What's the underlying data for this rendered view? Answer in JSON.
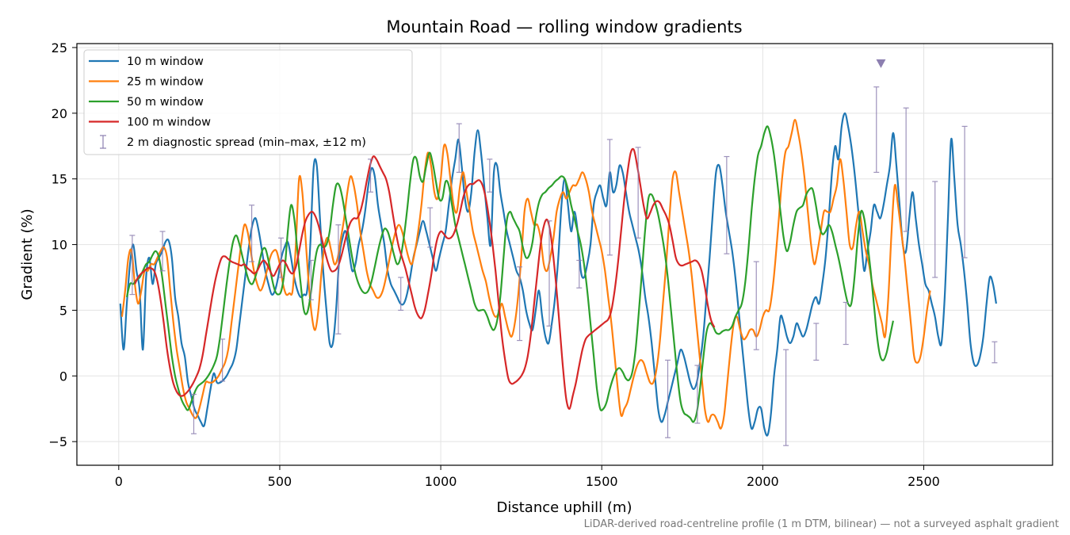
{
  "chart_data": {
    "type": "line",
    "title": "Mountain Road — rolling window gradients",
    "xlabel": "Distance uphill (m)",
    "ylabel": "Gradient (%)",
    "footnote": "LiDAR-derived road-centreline profile (1 m DTM, bilinear) — not a surveyed asphalt gradient",
    "xlim": [
      -130,
      2900
    ],
    "ylim": [
      -6.8,
      25.3
    ],
    "xticks": [
      0,
      500,
      1000,
      1500,
      2000,
      2500
    ],
    "yticks": [
      -5,
      0,
      5,
      10,
      15,
      20,
      25
    ],
    "grid": true,
    "legend_position": "top-left",
    "peak_marker": {
      "x": 2367,
      "y": 23.8,
      "color": "#8c7fb0"
    },
    "series": [
      {
        "name": "10 m window",
        "color": "#1f77b4",
        "x0": 5,
        "step": 10,
        "values": [
          5.5,
          2.0,
          5.5,
          8.5,
          10.0,
          8.0,
          6.5,
          2.0,
          7.5,
          9.0,
          7.0,
          8.5,
          9.0,
          9.5,
          10.2,
          10.3,
          9.0,
          6.0,
          4.5,
          2.5,
          1.5,
          -0.5,
          -1.5,
          -2.5,
          -3.0,
          -3.5,
          -3.8,
          -2.5,
          -1.0,
          0.2,
          -0.5,
          -0.5,
          -0.3,
          0.0,
          0.5,
          1.0,
          2.0,
          4.0,
          6.0,
          8.0,
          10.0,
          11.5,
          12.0,
          11.0,
          9.5,
          8.0,
          7.0,
          6.2,
          6.5,
          7.5,
          9.0,
          9.8,
          10.2,
          9.0,
          7.5,
          6.5,
          6.0,
          6.2,
          6.5,
          10.0,
          15.8,
          16.0,
          12.0,
          8.0,
          5.0,
          2.5,
          2.5,
          5.0,
          9.0,
          10.5,
          11.0,
          9.5,
          8.0,
          8.5,
          10.0,
          11.0,
          12.5,
          14.5,
          15.8,
          15.2,
          13.0,
          11.5,
          10.0,
          8.0,
          7.0,
          6.5,
          6.0,
          5.5,
          5.5,
          6.2,
          7.5,
          9.0,
          10.0,
          11.0,
          11.8,
          11.0,
          10.0,
          9.0,
          8.0,
          9.0,
          10.0,
          11.0,
          13.0,
          15.0,
          16.5,
          18.0,
          16.0,
          13.5,
          12.5,
          14.0,
          17.0,
          18.7,
          17.0,
          14.5,
          12.0,
          10.0,
          15.5,
          16.0,
          14.0,
          12.5,
          11.0,
          10.0,
          9.0,
          8.0,
          7.5,
          6.5,
          5.0,
          4.0,
          3.5,
          5.0,
          6.5,
          4.5,
          3.0,
          2.5,
          4.0,
          6.0,
          9.0,
          13.0,
          15.0,
          13.0,
          11.0,
          12.5,
          11.0,
          8.0,
          7.5,
          8.5,
          10.0,
          13.0,
          14.0,
          14.5,
          13.5,
          13.0,
          15.5,
          14.0,
          14.5,
          16.0,
          15.5,
          14.0,
          12.5,
          11.5,
          10.5,
          9.5,
          8.0,
          6.0,
          4.5,
          2.5,
          0.0,
          -2.5,
          -3.5,
          -3.0,
          -2.0,
          -1.0,
          0.0,
          1.0,
          2.0,
          1.5,
          0.5,
          -0.5,
          -1.0,
          -0.5,
          1.0,
          3.0,
          6.0,
          9.0,
          12.5,
          15.5,
          16.0,
          14.5,
          12.5,
          11.0,
          9.5,
          7.5,
          5.0,
          2.5,
          0.0,
          -2.5,
          -4.0,
          -3.5,
          -2.5,
          -2.5,
          -4.0,
          -4.5,
          -3.0,
          0.0,
          2.0,
          4.5,
          4.0,
          3.0,
          2.5,
          3.0,
          4.0,
          3.5,
          3.0,
          3.5,
          4.5,
          5.5,
          6.0,
          5.5,
          7.0,
          9.0,
          12.0,
          15.5,
          17.5,
          16.5,
          19.0,
          20.0,
          19.0,
          17.5,
          15.5,
          13.0,
          10.5,
          8.0,
          9.5,
          11.0,
          13.0,
          12.5,
          12.0,
          13.0,
          14.5,
          16.0,
          18.5,
          16.0,
          13.0,
          10.0,
          9.5,
          12.0,
          14.0,
          12.0,
          10.0,
          8.5,
          7.0,
          6.5,
          5.5,
          4.5,
          3.0,
          2.5,
          6.0,
          12.0,
          18.0,
          15.0,
          11.5,
          10.0,
          8.0,
          5.5,
          2.5,
          1.0,
          0.8,
          1.5,
          3.0,
          5.5,
          7.5,
          7.0,
          5.5
        ]
      },
      {
        "name": "25 m window",
        "color": "#ff7f0e",
        "x0": 10,
        "step": 10,
        "values": [
          4.5,
          6.5,
          9.0,
          9.5,
          7.0,
          5.5,
          6.5,
          8.0,
          8.0,
          8.5,
          8.5,
          9.0,
          9.5,
          9.8,
          9.0,
          6.5,
          4.0,
          2.0,
          0.5,
          -1.0,
          -2.0,
          -2.5,
          -3.0,
          -3.2,
          -2.5,
          -1.5,
          -0.5,
          -0.5,
          -0.5,
          -0.3,
          0.0,
          0.5,
          1.0,
          2.0,
          4.0,
          6.0,
          8.0,
          10.0,
          11.5,
          11.0,
          9.5,
          8.0,
          7.0,
          6.5,
          7.0,
          8.0,
          9.0,
          9.5,
          9.5,
          8.5,
          7.0,
          6.2,
          6.3,
          6.5,
          10.0,
          15.0,
          14.0,
          10.5,
          7.0,
          4.5,
          3.5,
          5.0,
          8.0,
          10.0,
          10.5,
          9.5,
          8.5,
          9.0,
          10.5,
          12.0,
          14.0,
          15.2,
          14.5,
          13.0,
          11.0,
          9.5,
          8.0,
          7.0,
          6.5,
          6.0,
          6.0,
          6.5,
          7.5,
          8.8,
          10.0,
          11.0,
          11.5,
          11.0,
          10.0,
          9.0,
          8.5,
          9.5,
          11.0,
          13.0,
          15.5,
          17.0,
          16.0,
          14.0,
          13.5,
          15.0,
          17.5,
          17.0,
          15.0,
          13.0,
          12.5,
          14.5,
          15.5,
          14.0,
          12.5,
          11.0,
          10.0,
          9.0,
          8.0,
          7.2,
          6.0,
          5.0,
          4.5,
          4.8,
          5.5,
          4.5,
          3.5,
          3.0,
          4.0,
          6.0,
          9.0,
          12.5,
          13.5,
          12.5,
          11.5,
          11.5,
          10.5,
          8.5,
          8.0,
          9.0,
          10.5,
          12.5,
          13.5,
          14.0,
          13.5,
          14.0,
          14.5,
          14.5,
          15.0,
          15.5,
          15.0,
          14.0,
          12.5,
          11.5,
          10.5,
          9.5,
          8.0,
          6.0,
          4.0,
          1.5,
          -1.0,
          -3.0,
          -2.5,
          -2.0,
          -1.0,
          0.0,
          0.8,
          1.2,
          1.0,
          0.2,
          -0.5,
          -0.5,
          0.5,
          2.5,
          5.5,
          8.5,
          12.0,
          15.0,
          15.5,
          14.0,
          12.5,
          11.0,
          9.5,
          7.5,
          5.0,
          2.5,
          0.0,
          -2.5,
          -3.5,
          -3.0,
          -3.0,
          -3.5,
          -4.0,
          -3.0,
          -0.5,
          2.0,
          4.0,
          4.5,
          3.5,
          2.8,
          3.0,
          3.5,
          3.5,
          3.0,
          3.5,
          4.5,
          5.0,
          5.0,
          6.5,
          9.0,
          12.0,
          15.0,
          17.0,
          17.5,
          18.5,
          19.5,
          18.5,
          17.0,
          15.0,
          12.5,
          10.0,
          8.5,
          9.5,
          11.0,
          12.5,
          12.5,
          12.5,
          13.5,
          14.5,
          16.5,
          15.0,
          12.5,
          10.0,
          9.8,
          11.5,
          12.5,
          11.0,
          9.5,
          8.5,
          7.0,
          6.0,
          5.0,
          4.0,
          3.0,
          6.0,
          11.0,
          14.5,
          13.0,
          11.0,
          9.0,
          6.5,
          4.0,
          1.5,
          1.0,
          1.5,
          3.0,
          5.0,
          6.5
        ]
      },
      {
        "name": "50 m window",
        "color": "#2ca02c",
        "x0": 25,
        "step": 10,
        "values": [
          6.0,
          7.0,
          7.0,
          7.3,
          7.5,
          8.0,
          8.5,
          8.7,
          9.2,
          9.5,
          9.0,
          7.5,
          5.5,
          3.5,
          1.5,
          0.0,
          -1.0,
          -1.8,
          -2.3,
          -2.6,
          -2.0,
          -1.3,
          -0.8,
          -0.6,
          -0.4,
          -0.1,
          0.3,
          0.8,
          1.5,
          3.0,
          5.0,
          7.0,
          8.8,
          10.2,
          10.7,
          10.0,
          9.0,
          8.0,
          7.2,
          7.0,
          7.6,
          8.5,
          9.5,
          9.7,
          8.8,
          7.5,
          6.5,
          6.2,
          6.5,
          8.0,
          11.0,
          13.0,
          12.0,
          9.5,
          7.0,
          5.0,
          4.8,
          6.0,
          8.0,
          9.5,
          10.0,
          9.8,
          10.0,
          11.0,
          13.0,
          14.5,
          14.5,
          13.5,
          12.0,
          10.5,
          9.0,
          7.8,
          7.0,
          6.5,
          6.3,
          6.5,
          7.2,
          8.3,
          9.5,
          10.5,
          11.2,
          11.0,
          10.2,
          9.2,
          8.5,
          9.0,
          10.5,
          12.5,
          14.8,
          16.5,
          16.5,
          15.2,
          14.8,
          16.0,
          17.0,
          16.2,
          14.8,
          13.5,
          13.5,
          14.8,
          14.5,
          13.0,
          11.5,
          10.5,
          9.5,
          8.5,
          7.5,
          6.5,
          5.5,
          5.0,
          5.0,
          5.0,
          4.5,
          3.8,
          3.5,
          4.2,
          6.0,
          9.0,
          11.8,
          12.5,
          12.0,
          11.5,
          11.0,
          9.8,
          9.0,
          9.2,
          10.2,
          12.0,
          13.2,
          13.8,
          14.0,
          14.3,
          14.5,
          14.8,
          15.0,
          15.2,
          15.0,
          14.2,
          13.0,
          12.0,
          11.0,
          10.0,
          8.5,
          6.5,
          4.0,
          1.5,
          -1.0,
          -2.5,
          -2.5,
          -2.0,
          -1.0,
          -0.2,
          0.4,
          0.6,
          0.3,
          -0.2,
          -0.3,
          0.3,
          2.0,
          4.8,
          8.0,
          11.2,
          13.5,
          13.8,
          13.2,
          12.3,
          11.0,
          9.5,
          7.5,
          5.0,
          2.5,
          0.0,
          -2.0,
          -2.8,
          -3.0,
          -3.2,
          -3.5,
          -2.8,
          -1.0,
          1.3,
          3.3,
          4.0,
          3.8,
          3.3,
          3.2,
          3.4,
          3.5,
          3.5,
          3.8,
          4.5,
          5.0,
          5.5,
          7.0,
          9.5,
          12.5,
          15.0,
          16.8,
          17.5,
          18.5,
          19.0,
          18.2,
          16.8,
          14.8,
          12.5,
          10.5,
          9.5,
          10.2,
          11.5,
          12.5,
          12.8,
          13.0,
          13.8,
          14.2,
          14.2,
          13.0,
          11.5,
          10.8,
          11.0,
          11.5,
          11.0,
          10.0,
          9.0,
          7.8,
          6.5,
          5.5,
          5.5,
          7.5,
          10.5,
          12.5,
          12.0,
          10.2,
          8.0,
          5.5,
          3.0,
          1.5,
          1.2,
          1.8,
          3.0,
          4.2
        ]
      },
      {
        "name": "100 m window",
        "color": "#d62728",
        "x0": 50,
        "step": 10,
        "values": [
          7.0,
          7.5,
          7.8,
          8.0,
          8.2,
          8.2,
          8.0,
          7.2,
          5.8,
          4.0,
          2.0,
          0.5,
          -0.6,
          -1.2,
          -1.5,
          -1.5,
          -1.3,
          -1.0,
          -0.6,
          -0.1,
          0.5,
          1.5,
          3.0,
          4.5,
          6.0,
          7.3,
          8.3,
          9.0,
          9.1,
          8.9,
          8.7,
          8.6,
          8.5,
          8.4,
          8.5,
          8.2,
          8.0,
          7.8,
          8.0,
          8.5,
          8.8,
          8.5,
          8.0,
          7.6,
          8.0,
          8.5,
          8.8,
          8.5,
          8.0,
          7.8,
          8.3,
          9.5,
          10.8,
          11.8,
          12.3,
          12.5,
          12.2,
          11.5,
          10.5,
          9.5,
          8.6,
          8.0,
          8.0,
          8.3,
          9.0,
          10.0,
          11.0,
          11.7,
          12.0,
          12.0,
          12.5,
          13.5,
          14.8,
          16.0,
          16.7,
          16.5,
          16.0,
          15.5,
          15.0,
          14.0,
          12.5,
          11.0,
          9.8,
          9.0,
          8.2,
          7.2,
          6.2,
          5.2,
          4.6,
          4.4,
          5.0,
          6.2,
          7.6,
          9.3,
          10.5,
          11.0,
          10.8,
          10.5,
          10.5,
          10.8,
          11.5,
          12.5,
          13.6,
          14.3,
          14.6,
          14.6,
          14.8,
          14.9,
          14.5,
          13.5,
          12.0,
          10.2,
          8.0,
          5.5,
          3.0,
          1.2,
          -0.2,
          -0.6,
          -0.5,
          -0.3,
          0.0,
          0.5,
          1.5,
          3.2,
          5.5,
          7.8,
          10.0,
          11.4,
          11.9,
          11.0,
          9.0,
          6.5,
          3.5,
          0.5,
          -1.8,
          -2.5,
          -1.5,
          -0.5,
          0.8,
          2.0,
          2.8,
          3.1,
          3.3,
          3.5,
          3.7,
          3.9,
          4.1,
          4.3,
          5.0,
          6.5,
          8.5,
          11.0,
          13.5,
          15.5,
          17.0,
          17.2,
          16.0,
          14.5,
          13.0,
          12.0,
          12.4,
          13.0,
          13.3,
          13.2,
          12.7,
          12.2,
          11.5,
          10.3,
          9.0,
          8.5,
          8.4,
          8.5,
          8.6,
          8.7,
          8.8,
          8.6,
          8.0,
          6.8,
          5.3,
          4.2,
          3.7
        ]
      }
    ],
    "error_bars": {
      "name": "2 m diagnostic spread (min–max, ±12 m)",
      "color": "#8c7fb0",
      "points": [
        {
          "x": 42,
          "low": 6.2,
          "high": 10.7
        },
        {
          "x": 136,
          "low": 8.0,
          "high": 11.0
        },
        {
          "x": 233,
          "low": -4.4,
          "high": -1.4
        },
        {
          "x": 322,
          "low": -0.4,
          "high": 2.8
        },
        {
          "x": 413,
          "low": 8.7,
          "high": 13.0
        },
        {
          "x": 504,
          "low": 7.5,
          "high": 10.5
        },
        {
          "x": 597,
          "low": 5.8,
          "high": 8.8
        },
        {
          "x": 682,
          "low": 3.2,
          "high": 11.5
        },
        {
          "x": 782,
          "low": 14.0,
          "high": 16.5
        },
        {
          "x": 876,
          "low": 5.0,
          "high": 7.5
        },
        {
          "x": 967,
          "low": 9.8,
          "high": 12.8
        },
        {
          "x": 1057,
          "low": 15.5,
          "high": 19.2
        },
        {
          "x": 1152,
          "low": 14.0,
          "high": 16.5
        },
        {
          "x": 1245,
          "low": 2.7,
          "high": 8.3
        },
        {
          "x": 1337,
          "low": 3.8,
          "high": 11.8
        },
        {
          "x": 1430,
          "low": 6.7,
          "high": 8.8
        },
        {
          "x": 1525,
          "low": 9.2,
          "high": 18.0
        },
        {
          "x": 1613,
          "low": 10.5,
          "high": 17.4
        },
        {
          "x": 1705,
          "low": -4.7,
          "high": 1.2
        },
        {
          "x": 1797,
          "low": -3.6,
          "high": 0.8
        },
        {
          "x": 1888,
          "low": 9.3,
          "high": 16.7
        },
        {
          "x": 1980,
          "low": 2.0,
          "high": 8.7
        },
        {
          "x": 2072,
          "low": -5.3,
          "high": 2.0
        },
        {
          "x": 2166,
          "low": 1.2,
          "high": 4.0
        },
        {
          "x": 2258,
          "low": 2.4,
          "high": 5.6
        },
        {
          "x": 2353,
          "low": 15.5,
          "high": 22.0
        },
        {
          "x": 2445,
          "low": 11.0,
          "high": 20.4
        },
        {
          "x": 2535,
          "low": 7.5,
          "high": 14.8
        },
        {
          "x": 2627,
          "low": 9.0,
          "high": 19.0
        },
        {
          "x": 2720,
          "low": 1.0,
          "high": 2.6
        }
      ]
    }
  }
}
